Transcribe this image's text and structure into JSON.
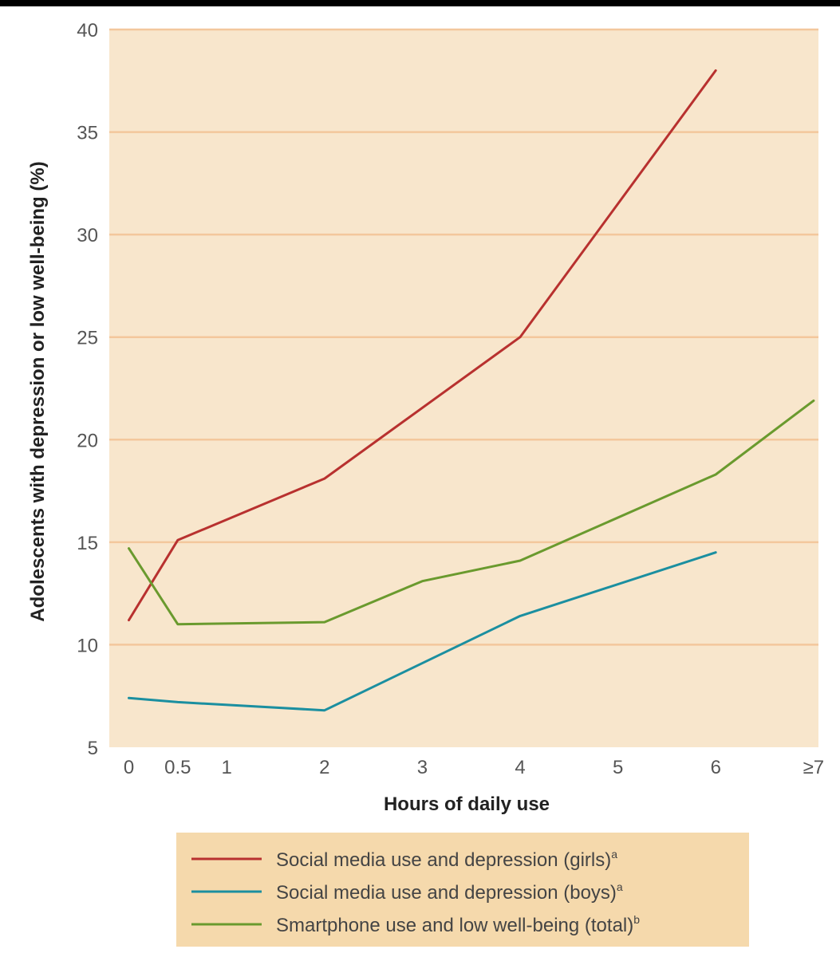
{
  "chart_data": {
    "type": "line",
    "title": "",
    "xlabel": "Hours of daily use",
    "ylabel": "Adolescents with depression or low well-being (%)",
    "ylim": [
      5,
      40
    ],
    "yticks": [
      5,
      10,
      15,
      20,
      25,
      30,
      35,
      40
    ],
    "xlim": [
      -0.2,
      7.05
    ],
    "xticks": [
      {
        "value": 0,
        "label": "0"
      },
      {
        "value": 0.5,
        "label": "0.5"
      },
      {
        "value": 1,
        "label": "1"
      },
      {
        "value": 2,
        "label": "2"
      },
      {
        "value": 3,
        "label": "3"
      },
      {
        "value": 4,
        "label": "4"
      },
      {
        "value": 5,
        "label": "5"
      },
      {
        "value": 6,
        "label": "6"
      },
      {
        "value": 7,
        "label": "≥7"
      }
    ],
    "grid": true,
    "colors": {
      "plot_background": "#f8e6cc",
      "gridline": "#f3c79c",
      "legend_background": "#f5d9ac"
    },
    "legend_position": "bottom",
    "series": [
      {
        "name": "Social media use and depression (girls)",
        "superscript": "a",
        "color": "#b8312f",
        "x": [
          0,
          0.5,
          2,
          4,
          6
        ],
        "y": [
          11.2,
          15.1,
          18.1,
          25.0,
          38.0
        ]
      },
      {
        "name": "Social media use and depression (boys)",
        "superscript": "a",
        "color": "#1b8fa0",
        "x": [
          0,
          0.5,
          2,
          4,
          6
        ],
        "y": [
          7.4,
          7.2,
          6.8,
          11.4,
          14.5
        ]
      },
      {
        "name": "Smartphone use and low well-being (total)",
        "superscript": "b",
        "color": "#6a9a2e",
        "x": [
          0,
          0.5,
          2,
          3,
          4,
          6,
          7
        ],
        "y": [
          14.7,
          11.0,
          11.1,
          13.1,
          14.1,
          18.3,
          21.9
        ]
      }
    ]
  }
}
